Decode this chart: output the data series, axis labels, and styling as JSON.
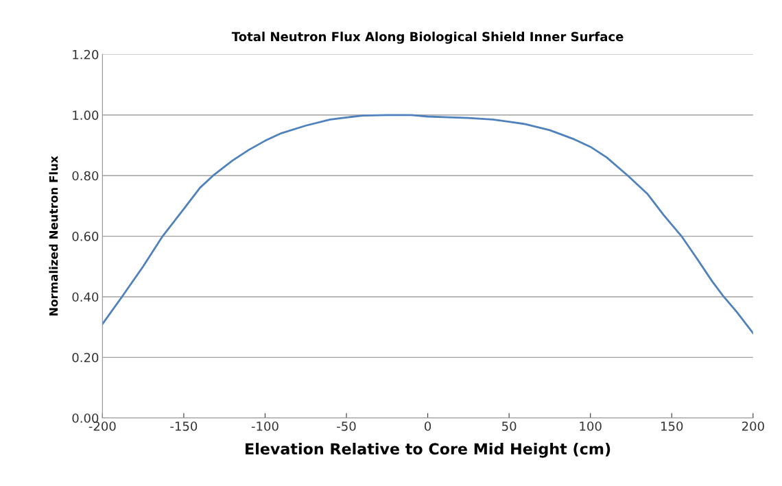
{
  "chart_data": {
    "type": "line",
    "title": "Total Neutron Flux Along Biological Shield Inner Surface",
    "xlabel": "Elevation Relative to Core Mid Height (cm)",
    "ylabel": "Normalized Neutron Flux",
    "x": [
      -200,
      -188,
      -175,
      -163,
      -150,
      -140,
      -132,
      -120,
      -110,
      -100,
      -90,
      -75,
      -60,
      -50,
      -40,
      -25,
      -10,
      0,
      10,
      25,
      40,
      50,
      60,
      75,
      90,
      100,
      110,
      123,
      135,
      145,
      156,
      165,
      175,
      182,
      190,
      200
    ],
    "series": [
      {
        "color": "#4f81bd",
        "values": [
          0.31,
          0.4,
          0.5,
          0.6,
          0.69,
          0.76,
          0.8,
          0.85,
          0.885,
          0.915,
          0.94,
          0.965,
          0.985,
          0.992,
          0.998,
          1.0,
          1.0,
          0.995,
          0.993,
          0.99,
          0.985,
          0.978,
          0.97,
          0.95,
          0.92,
          0.895,
          0.86,
          0.8,
          0.74,
          0.67,
          0.6,
          0.53,
          0.45,
          0.4,
          0.35,
          0.28
        ]
      }
    ],
    "xlim": [
      -200,
      200
    ],
    "xticks": [
      -200,
      -150,
      -100,
      -50,
      0,
      50,
      100,
      150,
      200
    ],
    "ylim": [
      0,
      1.2
    ],
    "yticks": [
      {
        "value": 0,
        "label": "0.00"
      },
      {
        "value": 0.2,
        "label": "0.20"
      },
      {
        "value": 0.4,
        "label": "0.40"
      },
      {
        "value": 0.6,
        "label": "0.60"
      },
      {
        "value": 0.8,
        "label": "0.80"
      },
      {
        "value": 1.0,
        "label": "1.00"
      },
      {
        "value": 1.2,
        "label": "1.20"
      }
    ],
    "grid": "y",
    "legend": false
  }
}
